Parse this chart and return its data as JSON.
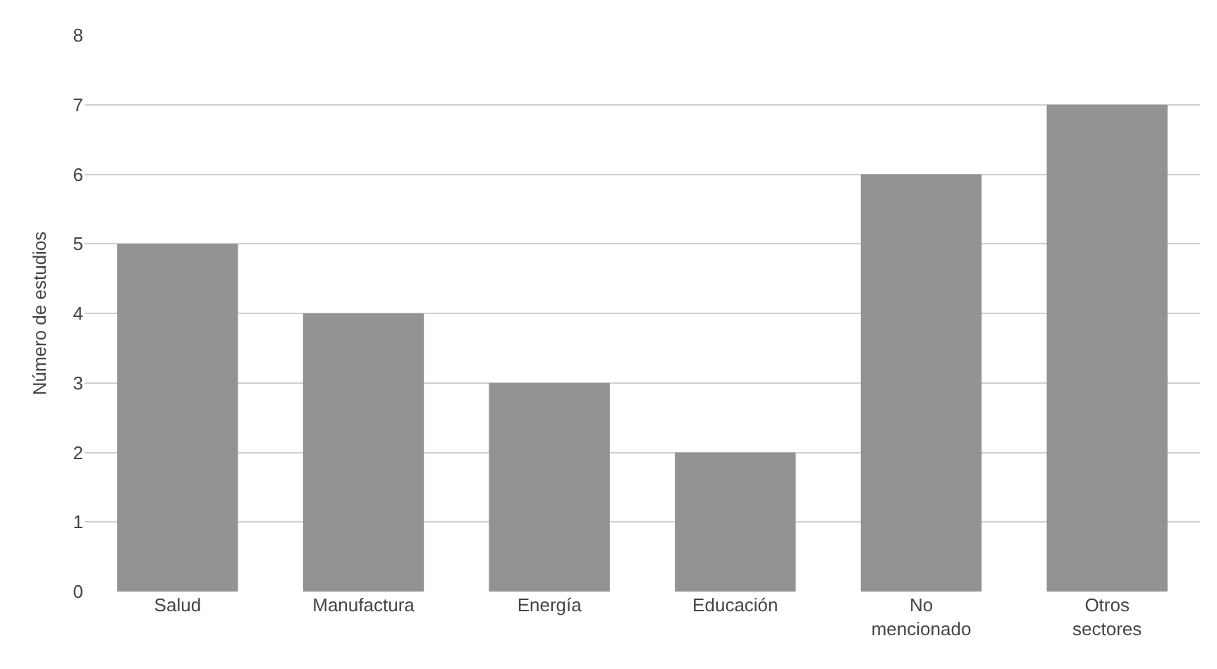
{
  "chart_data": {
    "type": "bar",
    "ylabel": "Número de estudios",
    "categories": [
      "Salud",
      "Manufactura",
      "Energía",
      "Educación",
      "No mencionado",
      "Otros sectores"
    ],
    "values": [
      5,
      4,
      3,
      2,
      6,
      7
    ],
    "color": "#939393",
    "ylim": [
      0,
      8
    ],
    "yticks": [
      0,
      1,
      2,
      3,
      4,
      5,
      6,
      7,
      8
    ],
    "grid": "y",
    "legend": false
  }
}
